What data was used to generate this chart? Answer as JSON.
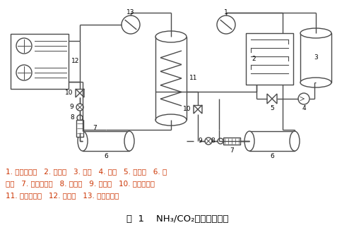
{
  "title": "图  1    NH₃/CO₂复叠制冷系统",
  "legend_line1": "1. 高温压缩机   2. 冷凝器   3. 水箱   4. 水泵   5. 泄压阀   6. 贮",
  "legend_line2": "液罐   7. 干燥过滤器   8. 视液镜   9. 电磁阀   10. 电子膨胀阀",
  "legend_line3": "11. 蒸发冷凝器   12. 蒸发器   13. 低温压缩机",
  "bg_color": "#ffffff",
  "line_color": "#4a4a4a",
  "text_color": "#cc3300",
  "title_color": "#000000",
  "font": "SimSun"
}
